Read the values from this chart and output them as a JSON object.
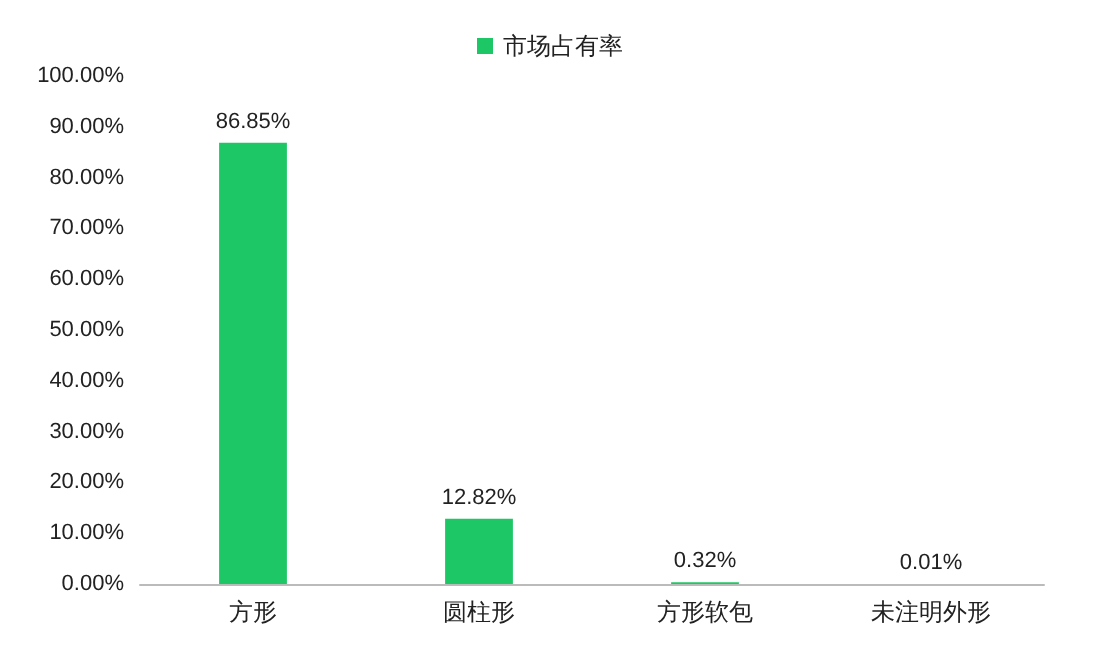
{
  "chart_data": {
    "type": "bar",
    "categories": [
      "方形",
      "圆柱形",
      "方形软包",
      "未注明外形"
    ],
    "series": [
      {
        "name": "市场占有率",
        "color": "#1ec765",
        "values": [
          86.85,
          12.82,
          0.32,
          0.01
        ],
        "value_labels": [
          "86.85%",
          "12.82%",
          "0.32%",
          "0.01%"
        ]
      }
    ],
    "ylim": [
      0,
      100
    ],
    "yticks": [
      {
        "value": 0,
        "label": "0.00%"
      },
      {
        "value": 10,
        "label": "10.00%"
      },
      {
        "value": 20,
        "label": "20.00%"
      },
      {
        "value": 30,
        "label": "30.00%"
      },
      {
        "value": 40,
        "label": "40.00%"
      },
      {
        "value": 50,
        "label": "50.00%"
      },
      {
        "value": 60,
        "label": "60.00%"
      },
      {
        "value": 70,
        "label": "70.00%"
      },
      {
        "value": 80,
        "label": "80.00%"
      },
      {
        "value": 90,
        "label": "90.00%"
      },
      {
        "value": 100,
        "label": "100.00%"
      }
    ],
    "legend": "top",
    "grid": false
  }
}
